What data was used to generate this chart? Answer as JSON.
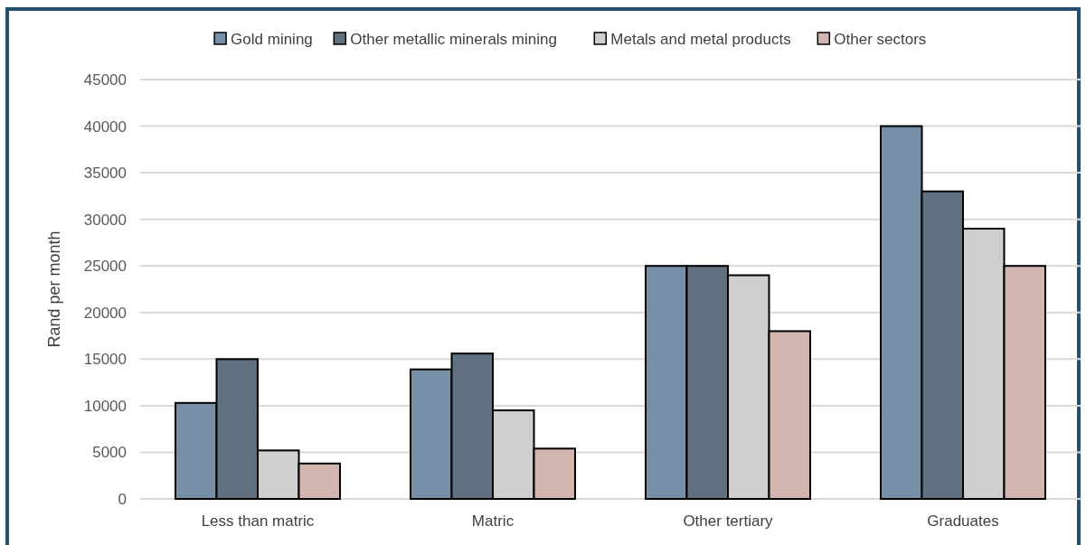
{
  "chart_data": {
    "type": "bar",
    "ylabel": "Rand per month",
    "categories": [
      "Less than matric",
      "Matric",
      "Other tertiary",
      "Graduates"
    ],
    "series": [
      {
        "name": "Gold mining",
        "color": "#7790a8",
        "values": [
          10300,
          13900,
          25000,
          40000
        ]
      },
      {
        "name": "Other metallic minerals mining",
        "color": "#617080",
        "values": [
          15000,
          15600,
          25000,
          33000
        ]
      },
      {
        "name": "Metals and metal products",
        "color": "#d0cece",
        "values": [
          5200,
          9500,
          24000,
          29000
        ]
      },
      {
        "name": "Other sectors",
        "color": "#d3b5b0",
        "values": [
          3800,
          5400,
          18000,
          25000
        ]
      }
    ],
    "ylim": [
      0,
      45000
    ],
    "yticks": [
      0,
      5000,
      10000,
      15000,
      20000,
      25000,
      30000,
      35000,
      40000,
      45000
    ],
    "grid": "y",
    "legend": "top"
  }
}
